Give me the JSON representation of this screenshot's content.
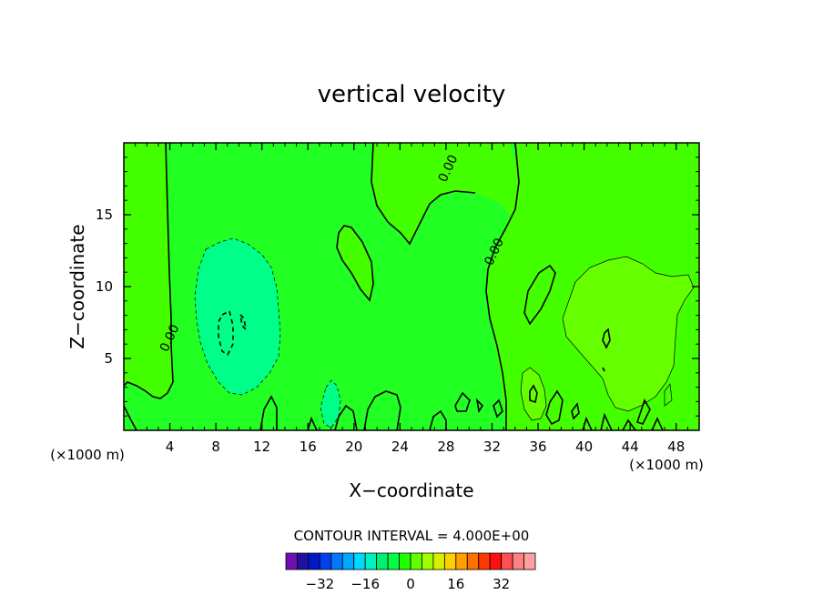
{
  "chart_data": {
    "type": "heatmap",
    "title": "vertical velocity",
    "xlabel": "X−coordinate",
    "ylabel": "Z−coordinate",
    "xunit": "(×1000 m)",
    "zunit": "(×1000 m)",
    "xlim": [
      0,
      50
    ],
    "zlim": [
      0,
      20
    ],
    "x_ticks": [
      "4",
      "8",
      "12",
      "16",
      "20",
      "24",
      "28",
      "32",
      "36",
      "40",
      "44",
      "48"
    ],
    "z_ticks": [
      "5",
      "10",
      "15"
    ],
    "contour_labels": [
      {
        "text": "0.00",
        "x": 4.3,
        "z": 6.3
      },
      {
        "text": "0.00",
        "x": 28.5,
        "z": 18.1
      },
      {
        "text": "0.00",
        "x": 32.5,
        "z": 12.3
      }
    ],
    "contour_interval_text": "CONTOUR INTERVAL =  4.000E+00",
    "colorbar": {
      "colors": [
        "#7010b0",
        "#2010a0",
        "#0018c8",
        "#0040f0",
        "#0078ff",
        "#00a8ff",
        "#00d8ff",
        "#00f0c0",
        "#00f070",
        "#00ff40",
        "#20ff00",
        "#60ff00",
        "#a0ff00",
        "#d8f000",
        "#ffd000",
        "#ffa000",
        "#ff7000",
        "#ff3800",
        "#ff1010",
        "#ff5050",
        "#ff8080",
        "#ffa0a0"
      ],
      "tick_labels": [
        "−32",
        "−16",
        "0",
        "16",
        "32"
      ]
    },
    "field_colors": {
      "base": "#22ff22",
      "positive_weak": "#66ff00",
      "negative_weak": "#00ff88",
      "positive_strong": "#44ff00",
      "negative_strong": "#00ee66"
    }
  }
}
